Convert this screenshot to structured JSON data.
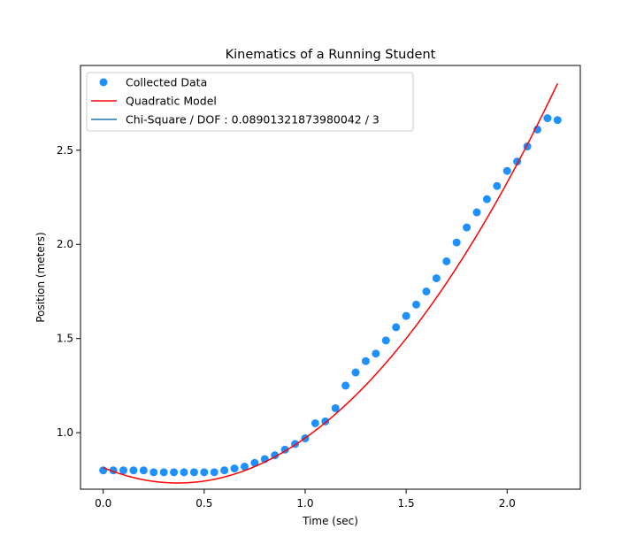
{
  "chart_data": {
    "type": "scatter",
    "title": "Kinematics of a Running Student",
    "xlabel": "Time (sec)",
    "ylabel": "Position (meters)",
    "xlim": [
      -0.1125,
      2.3625
    ],
    "ylim": [
      0.7,
      2.95
    ],
    "xticks": [
      0.0,
      0.5,
      1.0,
      1.5,
      2.0
    ],
    "xtick_labels": [
      "0.0",
      "0.5",
      "1.0",
      "1.5",
      "2.0"
    ],
    "yticks": [
      1.0,
      1.5,
      2.0,
      2.5
    ],
    "ytick_labels": [
      "1.0",
      "1.5",
      "2.0",
      "2.5"
    ],
    "grid": false,
    "legend_position": "upper-left",
    "series": [
      {
        "name": "Collected Data",
        "kind": "scatter",
        "color": "#1e90ff",
        "x": [
          0.0,
          0.05,
          0.1,
          0.15,
          0.2,
          0.25,
          0.3,
          0.35,
          0.4,
          0.45,
          0.5,
          0.55,
          0.6,
          0.65,
          0.7,
          0.75,
          0.8,
          0.85,
          0.9,
          0.95,
          1.0,
          1.05,
          1.1,
          1.15,
          1.2,
          1.25,
          1.3,
          1.35,
          1.4,
          1.45,
          1.5,
          1.55,
          1.6,
          1.65,
          1.7,
          1.75,
          1.8,
          1.85,
          1.9,
          1.95,
          2.0,
          2.05,
          2.1,
          2.15,
          2.2,
          2.25
        ],
        "y": [
          0.8,
          0.8,
          0.8,
          0.8,
          0.8,
          0.79,
          0.79,
          0.79,
          0.79,
          0.79,
          0.79,
          0.79,
          0.8,
          0.81,
          0.82,
          0.84,
          0.86,
          0.88,
          0.91,
          0.94,
          0.97,
          1.05,
          1.06,
          1.13,
          1.25,
          1.32,
          1.38,
          1.42,
          1.49,
          1.56,
          1.62,
          1.68,
          1.75,
          1.82,
          1.91,
          2.01,
          2.09,
          2.17,
          2.24,
          2.31,
          2.39,
          2.44,
          2.52,
          2.61,
          2.67,
          2.66
        ]
      },
      {
        "name": "Quadratic Model",
        "kind": "line",
        "color": "#ff0000",
        "model": {
          "a": 0.8146,
          "b": -0.4426,
          "c": 0.5997
        },
        "x_range": [
          0.0,
          2.25
        ]
      },
      {
        "name": "Chi-Square / DOF : 0.08901321873980042 / 3",
        "kind": "legend-only",
        "color": "#1f77b4"
      }
    ]
  }
}
